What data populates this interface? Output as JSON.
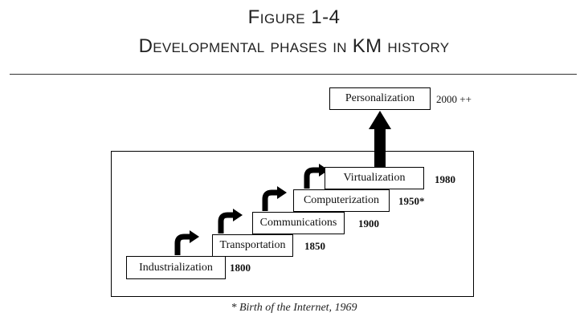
{
  "title": {
    "line1": "Figure 1-4",
    "line2": "Developmental phases in KM history"
  },
  "phases": [
    {
      "label": "Industrialization",
      "year": "1800"
    },
    {
      "label": "Transportation",
      "year": "1850"
    },
    {
      "label": "Communications",
      "year": "1900"
    },
    {
      "label": "Computerization",
      "year": "1950*"
    },
    {
      "label": "Virtualization",
      "year": "1980"
    },
    {
      "label": "Personalization",
      "year": "2000 ++"
    }
  ],
  "footnote": "* Birth of the Internet, 1969"
}
